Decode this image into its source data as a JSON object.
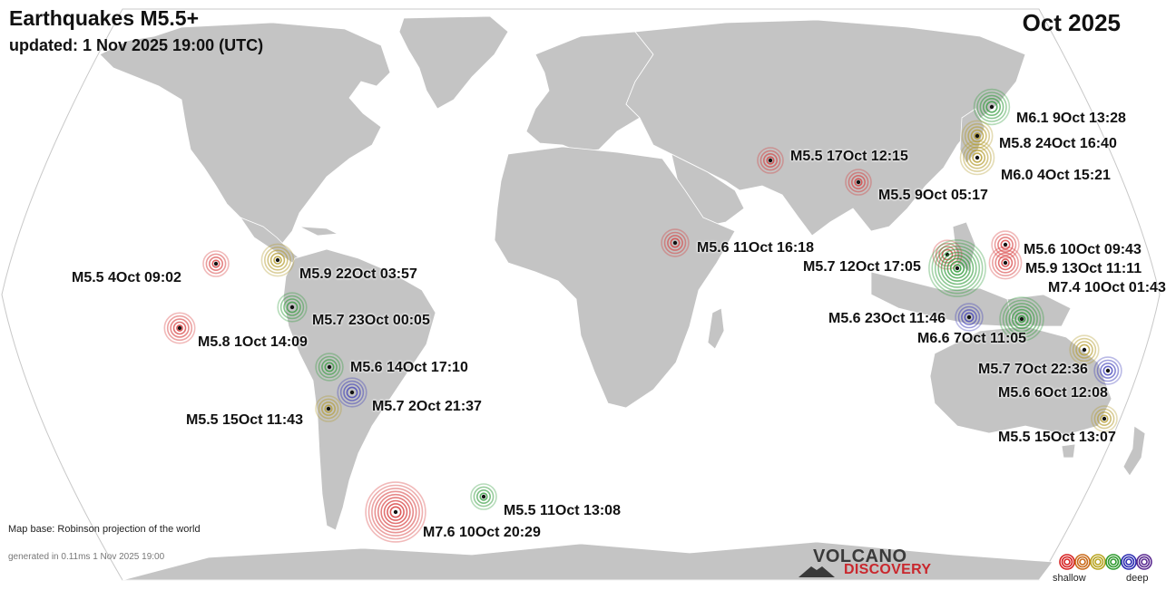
{
  "title": "Earthquakes M5.5+",
  "updated": "updated:  1 Nov 2025 19:00 (UTC)",
  "period": "Oct 2025",
  "map_note": "Map base: Robinson projection of the world",
  "generated": "generated in 0.11ms  1 Nov 2025 19:00",
  "logo": {
    "line1": "VOLCANO",
    "line2": "DISCOVERY"
  },
  "legend": {
    "shallow": "shallow",
    "deep": "deep",
    "colors": [
      "#d62020",
      "#c96a1a",
      "#b8a420",
      "#2e9a2e",
      "#2a2ab0",
      "#5a2a90"
    ]
  },
  "colors": {
    "land": "#c4c4c4",
    "ocean": "#ffffff",
    "outline": "#bdbdbd",
    "shallow": "#d63a3a",
    "intermediate": "#b39a2a",
    "mid": "#2f9a3a",
    "deep": "#3a3ab8"
  },
  "earthquakes": [
    {
      "label": "M6.1  9Oct 13:28",
      "mag": 6.1,
      "depth_class": "mid"
    },
    {
      "label": "M5.8 24Oct 16:40",
      "mag": 5.8,
      "depth_class": "intermediate"
    },
    {
      "label": "M6.0  4Oct 15:21",
      "mag": 6.0,
      "depth_class": "intermediate"
    },
    {
      "label": "M5.5 17Oct 12:15",
      "mag": 5.5,
      "depth_class": "shallow"
    },
    {
      "label": "M5.5  9Oct 05:17",
      "mag": 5.5,
      "depth_class": "shallow"
    },
    {
      "label": "M5.6 11Oct 16:18",
      "mag": 5.6,
      "depth_class": "shallow"
    },
    {
      "label": "M5.6 10Oct 09:43",
      "mag": 5.6,
      "depth_class": "shallow"
    },
    {
      "label": "M5.7 12Oct 17:05",
      "mag": 5.7,
      "depth_class": "shallow"
    },
    {
      "label": "M5.9 13Oct 11:11",
      "mag": 5.9,
      "depth_class": "shallow"
    },
    {
      "label": "M7.4 10Oct 01:43",
      "mag": 7.4,
      "depth_class": "mid"
    },
    {
      "label": "M5.6 23Oct 11:46",
      "mag": 5.6,
      "depth_class": "deep"
    },
    {
      "label": "M6.6  7Oct 11:05",
      "mag": 6.6,
      "depth_class": "mid"
    },
    {
      "label": "M5.7  7Oct 22:36",
      "mag": 5.7,
      "depth_class": "intermediate"
    },
    {
      "label": "M5.6  6Oct 12:08",
      "mag": 5.6,
      "depth_class": "deep"
    },
    {
      "label": "M5.5 15Oct 13:07",
      "mag": 5.5,
      "depth_class": "intermediate"
    },
    {
      "label": "M5.5  4Oct 09:02",
      "mag": 5.5,
      "depth_class": "shallow"
    },
    {
      "label": "M5.9 22Oct 03:57",
      "mag": 5.9,
      "depth_class": "intermediate"
    },
    {
      "label": "M5.7 23Oct 00:05",
      "mag": 5.7,
      "depth_class": "mid"
    },
    {
      "label": "M5.8  1Oct 14:09",
      "mag": 5.8,
      "depth_class": "shallow"
    },
    {
      "label": "M5.6 14Oct 17:10",
      "mag": 5.6,
      "depth_class": "mid"
    },
    {
      "label": "M5.7  2Oct 21:37",
      "mag": 5.7,
      "depth_class": "deep"
    },
    {
      "label": "M5.5 15Oct 11:43",
      "mag": 5.5,
      "depth_class": "intermediate"
    },
    {
      "label": "M7.6 10Oct 20:29",
      "mag": 7.6,
      "depth_class": "shallow"
    },
    {
      "label": "M5.5 11Oct 13:08",
      "mag": 5.5,
      "depth_class": "mid"
    }
  ]
}
